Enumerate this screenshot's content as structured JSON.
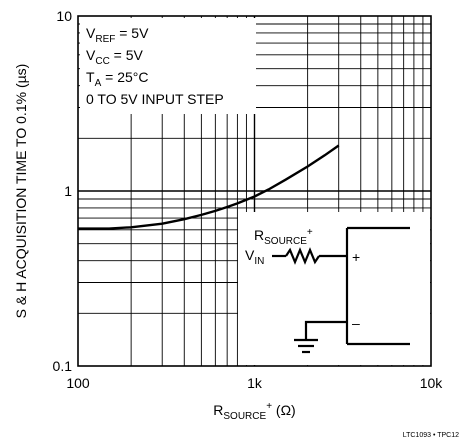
{
  "chart_data": {
    "type": "line",
    "title": "",
    "xscale": "log",
    "yscale": "log",
    "xlim": [
      100,
      10000
    ],
    "ylim": [
      0.1,
      10
    ],
    "grid": true,
    "xticks": [
      {
        "value": 100,
        "label": "100"
      },
      {
        "value": 1000,
        "label": "1k"
      },
      {
        "value": 10000,
        "label": "10k"
      }
    ],
    "yticks": [
      {
        "value": 0.1,
        "label": "0.1"
      },
      {
        "value": 1,
        "label": "1"
      },
      {
        "value": 10,
        "label": "10"
      }
    ],
    "xlabel": {
      "main": "R",
      "sub": "SOURCE",
      "sup": "+",
      "tail": " (Ω)"
    },
    "ylabel": "S & H ACQUISITION TIME TO 0.1% (µs)",
    "series": [
      {
        "x": [
          100,
          150,
          200,
          300,
          400,
          500,
          600,
          700,
          800,
          1000,
          1200,
          1500,
          2000,
          2500,
          3000
        ],
        "y": [
          0.61,
          0.61,
          0.62,
          0.65,
          0.69,
          0.73,
          0.77,
          0.81,
          0.85,
          0.93,
          1.02,
          1.16,
          1.38,
          1.6,
          1.82
        ]
      }
    ],
    "annotations": [
      {
        "main": "V",
        "sub": "REF",
        "tail": " = 5V"
      },
      {
        "main": "V",
        "sub": "CC",
        "tail": " = 5V"
      },
      {
        "main": "T",
        "sub": "A",
        "tail": " = 25°C"
      },
      {
        "main": "0 TO 5V INPUT STEP",
        "sub": "",
        "tail": ""
      }
    ],
    "inset": {
      "rsource": {
        "main": "R",
        "sub": "SOURCE",
        "sup": "+"
      },
      "vin": {
        "main": "V",
        "sub": "IN"
      },
      "plus": "+",
      "minus": "–"
    },
    "footer": "LTC1093 • TPC12"
  }
}
